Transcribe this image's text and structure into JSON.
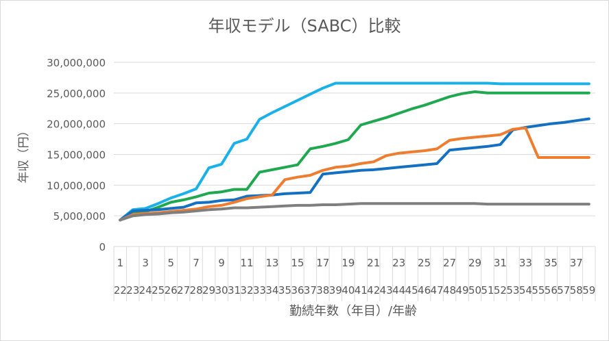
{
  "chart_data": {
    "type": "line",
    "title": "年収モデル（SABC）比較",
    "xlabel": "勤続年数（年目）/年齢",
    "ylabel": "年収（円）",
    "ylim": [
      0,
      30000000
    ],
    "y_ticks": [
      "0",
      "5,000,000",
      "10,000,000",
      "15,000,000",
      "20,000,000",
      "25,000,000",
      "30,000,000"
    ],
    "categories": [
      1,
      2,
      3,
      4,
      5,
      6,
      7,
      8,
      9,
      10,
      11,
      12,
      13,
      14,
      15,
      16,
      17,
      18,
      19,
      20,
      21,
      22,
      23,
      24,
      25,
      26,
      27,
      28,
      29,
      30,
      31,
      32,
      33,
      34,
      35,
      36,
      37,
      38
    ],
    "x_tick_labels_row1": [
      "1",
      "3",
      "5",
      "7",
      "9",
      "11",
      "13",
      "15",
      "17",
      "19",
      "21",
      "23",
      "25",
      "27",
      "29",
      "31",
      "33",
      "35",
      "37"
    ],
    "x_tick_labels_row2": [
      "22",
      "23",
      "24",
      "25",
      "26",
      "27",
      "28",
      "29",
      "30",
      "31",
      "32",
      "33",
      "34",
      "35",
      "36",
      "37",
      "38",
      "39",
      "40",
      "41",
      "42",
      "43",
      "44",
      "45",
      "46",
      "47",
      "48",
      "49",
      "50",
      "51",
      "52",
      "53",
      "54",
      "55",
      "56",
      "57",
      "58",
      "59"
    ],
    "grid": true,
    "series": [
      {
        "color": "#1ab0e8",
        "values": [
          4300000,
          6000000,
          6200000,
          7000000,
          7900000,
          8600000,
          9400000,
          12800000,
          13400000,
          16800000,
          17500000,
          20700000,
          21800000,
          22800000,
          23800000,
          24800000,
          25800000,
          26600000,
          26600000,
          26600000,
          26600000,
          26600000,
          26600000,
          26600000,
          26600000,
          26600000,
          26600000,
          26600000,
          26600000,
          26600000,
          26500000,
          26500000,
          26500000,
          26500000,
          26500000,
          26500000,
          26500000,
          26500000
        ]
      },
      {
        "color": "#1fa84f",
        "values": [
          4300000,
          5500000,
          5700000,
          6400000,
          7200000,
          7600000,
          8100000,
          8700000,
          8900000,
          9300000,
          9300000,
          12100000,
          12500000,
          12900000,
          13300000,
          15900000,
          16300000,
          16800000,
          17400000,
          19800000,
          20400000,
          21000000,
          21700000,
          22400000,
          23000000,
          23700000,
          24400000,
          24900000,
          25200000,
          25000000,
          25000000,
          25000000,
          25000000,
          25000000,
          25000000,
          25000000,
          25000000,
          25000000
        ]
      },
      {
        "color": "#1570c1",
        "values": [
          4300000,
          5800000,
          5900000,
          6000000,
          6200000,
          6400000,
          7100000,
          7200000,
          7500000,
          7600000,
          8200000,
          8300000,
          8400000,
          8600000,
          8700000,
          8800000,
          11800000,
          12000000,
          12200000,
          12400000,
          12500000,
          12700000,
          12900000,
          13100000,
          13300000,
          13500000,
          15700000,
          15900000,
          16100000,
          16300000,
          16600000,
          19000000,
          19400000,
          19700000,
          20000000,
          20200000,
          20500000,
          20800000
        ]
      },
      {
        "color": "#ef7d30",
        "values": [
          4300000,
          5200000,
          5400000,
          5500000,
          5700000,
          5900000,
          6100000,
          6500000,
          6700000,
          7200000,
          7800000,
          8100000,
          8400000,
          10900000,
          11300000,
          11600000,
          12400000,
          12900000,
          13100000,
          13500000,
          13800000,
          14800000,
          15200000,
          15400000,
          15600000,
          15900000,
          17300000,
          17600000,
          17800000,
          18000000,
          18200000,
          19100000,
          19300000,
          14500000,
          14500000,
          14500000,
          14500000,
          14500000
        ]
      },
      {
        "color": "#7f7f7f",
        "values": [
          4300000,
          5000000,
          5200000,
          5300000,
          5500000,
          5600000,
          5800000,
          6000000,
          6100000,
          6300000,
          6300000,
          6400000,
          6500000,
          6600000,
          6700000,
          6700000,
          6800000,
          6800000,
          6900000,
          7000000,
          7000000,
          7000000,
          7000000,
          7000000,
          7000000,
          7000000,
          7000000,
          7000000,
          7000000,
          6900000,
          6900000,
          6900000,
          6900000,
          6900000,
          6900000,
          6900000,
          6900000,
          6900000
        ]
      }
    ]
  }
}
